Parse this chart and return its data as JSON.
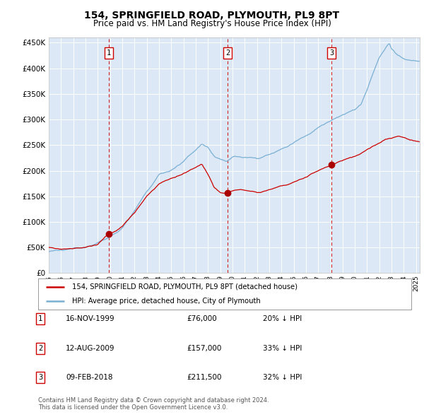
{
  "title": "154, SPRINGFIELD ROAD, PLYMOUTH, PL9 8PT",
  "subtitle": "Price paid vs. HM Land Registry's House Price Index (HPI)",
  "title_fontsize": 10,
  "subtitle_fontsize": 8.5,
  "background_color": "#ffffff",
  "plot_bg_color": "#dce8f5",
  "grid_color": "#ffffff",
  "ylim": [
    0,
    460000
  ],
  "yticks": [
    0,
    50000,
    100000,
    150000,
    200000,
    250000,
    300000,
    350000,
    400000,
    450000
  ],
  "ytick_labels": [
    "£0",
    "£50K",
    "£100K",
    "£150K",
    "£200K",
    "£250K",
    "£300K",
    "£350K",
    "£400K",
    "£450K"
  ],
  "sale_dates_num": [
    1999.88,
    2009.61,
    2018.11
  ],
  "sale_prices": [
    76000,
    157000,
    211500
  ],
  "sale_labels": [
    "1",
    "2",
    "3"
  ],
  "vline_color": "#cc0000",
  "sale_dot_color": "#aa0000",
  "hpi_color": "#7ab0d4",
  "price_color": "#cc0000",
  "footer_text": "Contains HM Land Registry data © Crown copyright and database right 2024.\nThis data is licensed under the Open Government Licence v3.0.",
  "table_rows": [
    [
      "1",
      "16-NOV-1999",
      "£76,000",
      "20% ↓ HPI"
    ],
    [
      "2",
      "12-AUG-2009",
      "£157,000",
      "33% ↓ HPI"
    ],
    [
      "3",
      "09-FEB-2018",
      "£211,500",
      "32% ↓ HPI"
    ]
  ],
  "legend_label_red": "154, SPRINGFIELD ROAD, PLYMOUTH, PL9 8PT (detached house)",
  "legend_label_blue": "HPI: Average price, detached house, City of Plymouth",
  "xlim_left": 1995.0,
  "xlim_right": 2025.3
}
